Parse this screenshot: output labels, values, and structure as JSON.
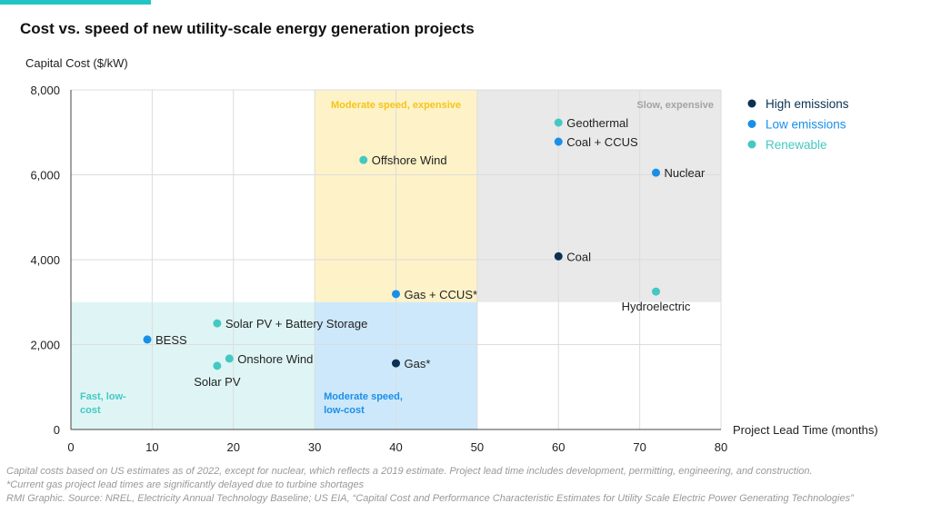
{
  "chart_data": {
    "type": "scatter",
    "title": "Cost vs. speed of new utility-scale energy generation projects",
    "ylabel": "Capital Cost ($/kW)",
    "xlabel": "Project Lead Time (months)",
    "xlim": [
      0,
      80
    ],
    "ylim": [
      0,
      8000
    ],
    "xticks": [
      0,
      10,
      20,
      30,
      40,
      50,
      60,
      70,
      80
    ],
    "yticks": [
      0,
      2000,
      4000,
      6000,
      8000
    ],
    "ytick_labels": [
      "0",
      "2,000",
      "4,000",
      "6,000",
      "8,000"
    ],
    "grid": true,
    "legend_position": "right",
    "legend": [
      {
        "name": "High emissions",
        "color": "#0a3152"
      },
      {
        "name": "Low emissions",
        "color": "#1a8fe8"
      },
      {
        "name": "Renewable",
        "color": "#45c8c3"
      }
    ],
    "regions": [
      {
        "label": "Moderate speed, expensive",
        "x": [
          30,
          50
        ],
        "y": [
          3000,
          8000
        ],
        "fill": "#fef2c8",
        "color": "#f5c518"
      },
      {
        "label": "Slow, expensive",
        "x": [
          50,
          80
        ],
        "y": [
          3000,
          8000
        ],
        "fill": "#e9e9e9",
        "color": "#a3a3a3"
      },
      {
        "label": "Fast, low-cost",
        "x": [
          0,
          30
        ],
        "y": [
          0,
          3000
        ],
        "fill": "#dff5f5",
        "color": "#45c8c3"
      },
      {
        "label": "Moderate speed, low-cost",
        "x": [
          30,
          50
        ],
        "y": [
          0,
          3000
        ],
        "fill": "#cde8fb",
        "color": "#1a8fe8"
      }
    ],
    "points": [
      {
        "name": "Geothermal",
        "x": 60,
        "y": 7230,
        "category": "Renewable"
      },
      {
        "name": "Coal + CCUS",
        "x": 60,
        "y": 6780,
        "category": "Low emissions"
      },
      {
        "name": "Offshore Wind",
        "x": 36,
        "y": 6350,
        "category": "Renewable"
      },
      {
        "name": "Nuclear",
        "x": 72,
        "y": 6050,
        "category": "Low emissions"
      },
      {
        "name": "Coal",
        "x": 60,
        "y": 4080,
        "category": "High emissions"
      },
      {
        "name": "Hydroelectric",
        "x": 72,
        "y": 3250,
        "category": "Renewable"
      },
      {
        "name": "Gas + CCUS*",
        "x": 40,
        "y": 3190,
        "category": "Low emissions"
      },
      {
        "name": "Solar PV + Battery Storage",
        "x": 18,
        "y": 2500,
        "category": "Renewable"
      },
      {
        "name": "BESS",
        "x": 9.4,
        "y": 2120,
        "category": "Low emissions"
      },
      {
        "name": "Onshore Wind",
        "x": 19.5,
        "y": 1670,
        "category": "Renewable"
      },
      {
        "name": "Gas*",
        "x": 40,
        "y": 1560,
        "category": "High emissions"
      },
      {
        "name": "Solar PV",
        "x": 18,
        "y": 1500,
        "category": "Renewable"
      }
    ]
  },
  "notes": {
    "line1": "Capital costs based on US estimates as of 2022, except for nuclear, which reflects a 2019 estimate. Project lead time includes development, permitting, engineering, and construction.",
    "line2": "*Current gas project lead times are significantly delayed due to turbine shortages",
    "source": "RMI Graphic. Source: NREL, Electricity Annual Technology Baseline; US EIA, “Capital Cost and Performance Characteristic Estimates for Utility Scale Electric Power Generating Technologies”"
  }
}
